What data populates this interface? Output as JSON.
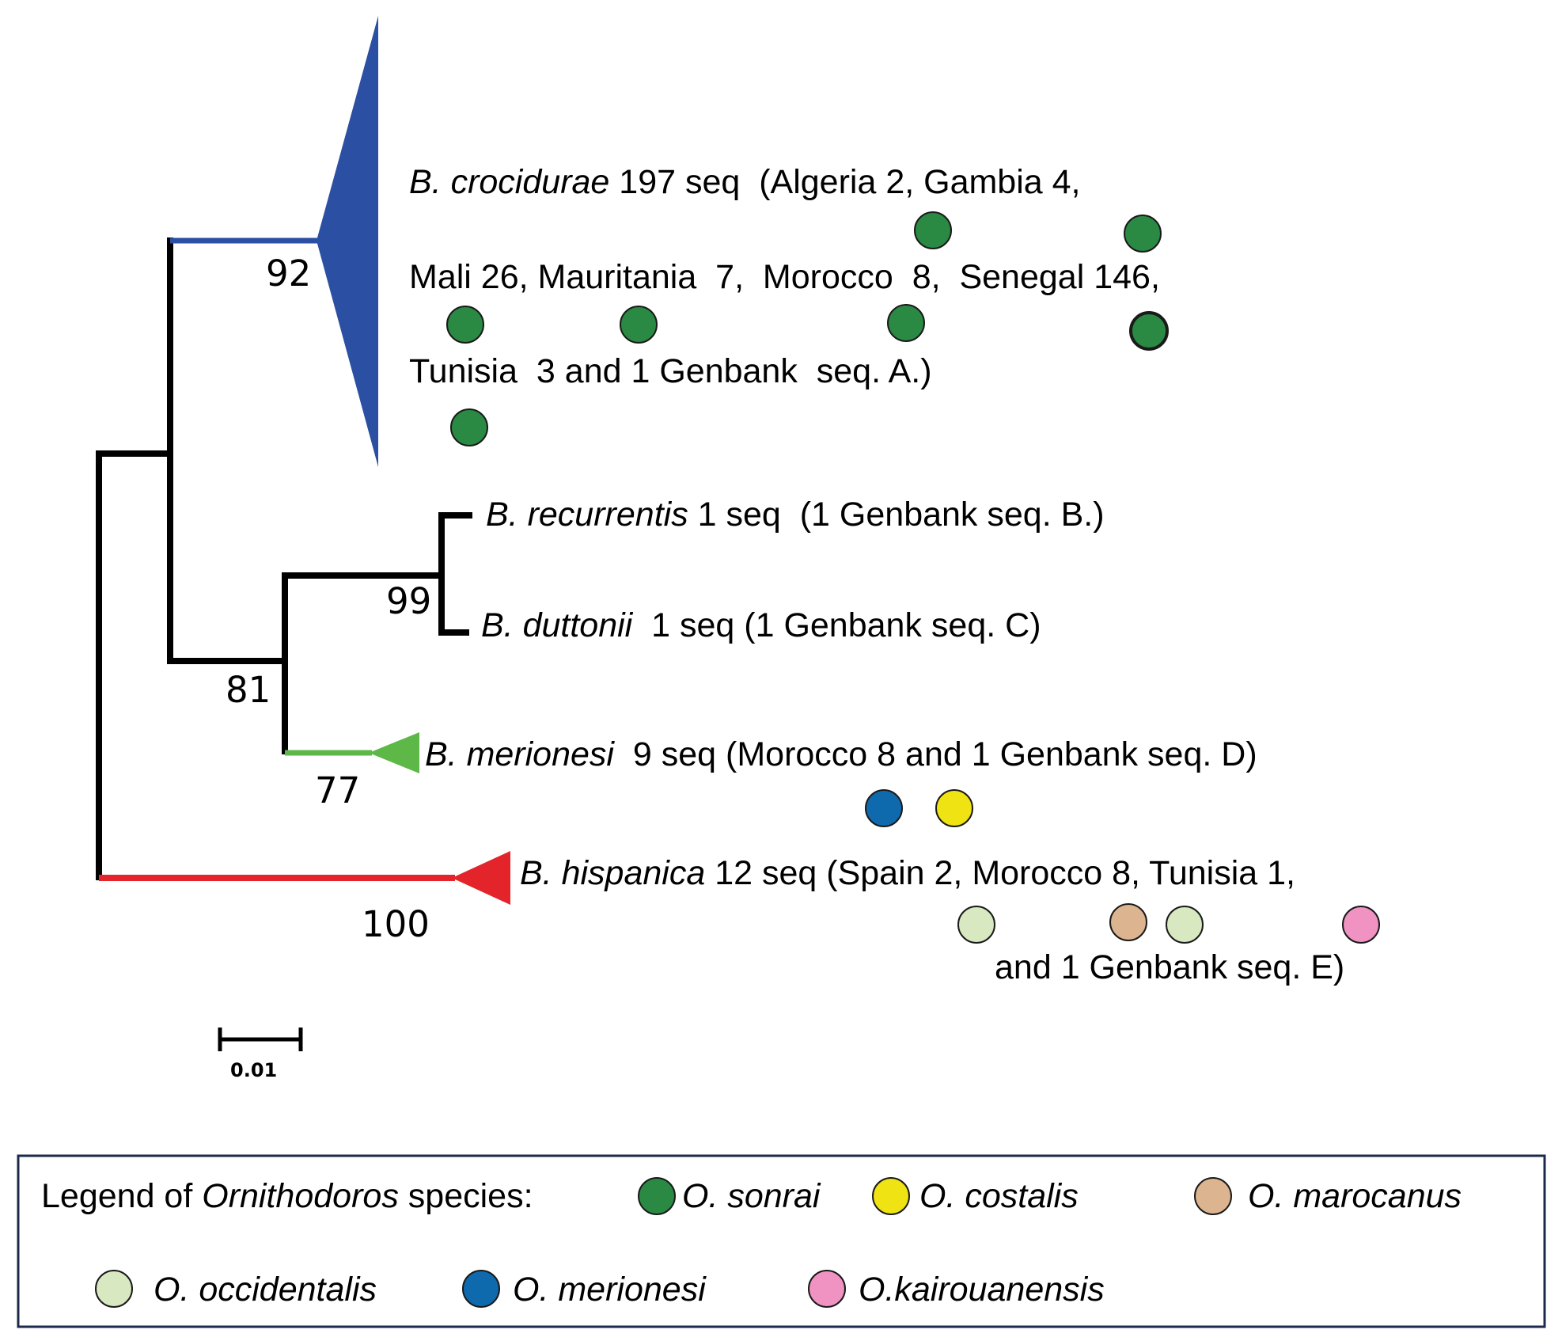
{
  "colors": {
    "o_sonrai": "#2a8a43",
    "o_costalis": "#f0e313",
    "o_marocanus": "#dcb48f",
    "o_occidentalis": "#d8e8c0",
    "o_merionesi": "#0f6aad",
    "o_kairouanensis": "#f193c2",
    "clade_crocidurae": "#2b4fa3",
    "clade_merionesi": "#5db847",
    "clade_hispanica": "#e3242b",
    "legend_border": "#1b2a4a"
  },
  "tree": {
    "bootstrap": {
      "crocidurae": "92",
      "recurrentis_duttonii": "99",
      "inner_clade": "81",
      "merionesi": "77",
      "hispanica": "100"
    },
    "scale_bar": {
      "label": "0.01"
    },
    "clades": {
      "crocidurae": {
        "line1": {
          "species": "B. crocidurae",
          "text": " 197 seq  (Algeria 2, Gambia 4,"
        },
        "line2": "Mali 26, Mauritania  7,  Morocco  8,  Senegal 146,",
        "line3": "Tunisia  3 and 1 Genbank  seq. A.)",
        "hosts": [
          "o_sonrai",
          "o_sonrai",
          "o_sonrai",
          "o_sonrai",
          "o_sonrai",
          "o_sonrai",
          "o_sonrai"
        ]
      },
      "recurrentis": {
        "species": "B. recurrentis",
        "text": " 1 seq  (1 Genbank seq. B.)"
      },
      "duttonii": {
        "species": "B. duttonii",
        "text": "  1 seq (1 Genbank seq. C)"
      },
      "merionesi": {
        "species": "B. merionesi",
        "text": "  9 seq (Morocco 8 and 1 Genbank seq. D)",
        "hosts": [
          "o_merionesi",
          "o_costalis"
        ]
      },
      "hispanica": {
        "species": "B. hispanica",
        "text": " 12 seq (Spain 2, Morocco 8, Tunisia 1,",
        "line2": "and 1 Genbank seq. E)",
        "hosts": [
          "o_occidentalis",
          "o_marocanus",
          "o_occidentalis",
          "o_kairouanensis"
        ]
      }
    }
  },
  "legend": {
    "prefix": "Legend of ",
    "genus": "Ornithodoros",
    "suffix": " species:",
    "items": [
      {
        "key": "o_sonrai",
        "label": "O. sonrai"
      },
      {
        "key": "o_costalis",
        "label": "O. costalis"
      },
      {
        "key": "o_marocanus",
        "label": "O. marocanus"
      },
      {
        "key": "o_occidentalis",
        "label": "O. occidentalis"
      },
      {
        "key": "o_merionesi",
        "label": "O. merionesi"
      },
      {
        "key": "o_kairouanensis",
        "label": "O.kairouanensis"
      }
    ]
  }
}
